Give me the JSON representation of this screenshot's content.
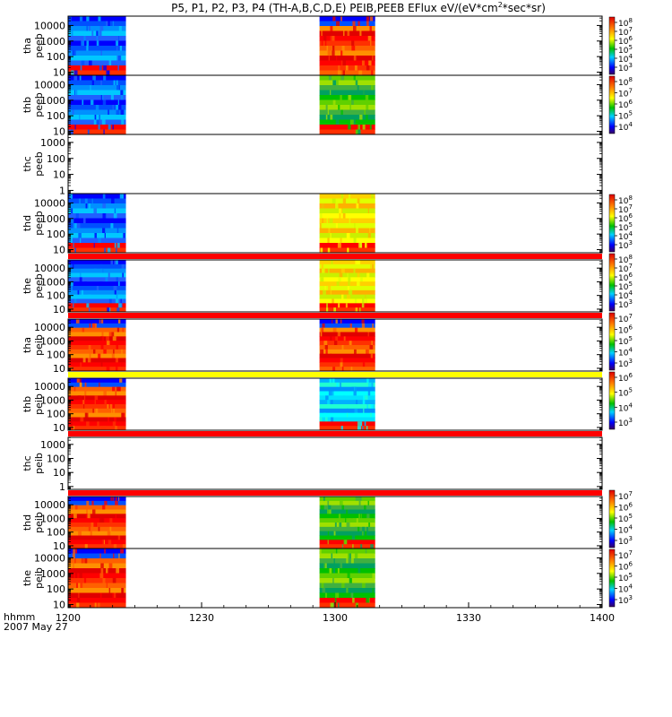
{
  "chart_data": {
    "type": "heatmap",
    "title": "P5, P1, P2, P3, P4 (TH-A,B,C,D,E) PEIB,PEEB EFlux eV/(eV*cm",
    "title_sup": "2",
    "title_end": "*sec*sr)",
    "x_label": "hhmm",
    "date_label": "2007 May 27",
    "x_ticks": [
      "1200",
      "1230",
      "1300",
      "1330",
      "1400"
    ],
    "x_tick_values": [
      0,
      30,
      60,
      90,
      120
    ],
    "xlim": [
      0,
      120
    ],
    "bursts": [
      [
        0,
        13
      ],
      [
        56.5,
        69
      ]
    ],
    "panels": [
      {
        "label1": "tha",
        "label2": "peeb",
        "y_ticks": [
          "10",
          "100",
          "1000",
          "10000"
        ],
        "ylim_log": [
          0.8,
          4.6
        ],
        "cb": [
          "10",
          "10",
          "10",
          "10",
          "10",
          "10"
        ],
        "cb_exp": [
          "3",
          "4",
          "5",
          "6",
          "7",
          "8"
        ],
        "burst_palette": [
          "blue",
          "red"
        ],
        "band": "none"
      },
      {
        "label1": "thb",
        "label2": "peeb",
        "y_ticks": [
          "10",
          "100",
          "1000",
          "10000"
        ],
        "ylim_log": [
          0.8,
          4.6
        ],
        "cb": [
          "10",
          "10",
          "10",
          "10",
          "10"
        ],
        "cb_exp": [
          "4",
          "5",
          "6",
          "7",
          "8"
        ],
        "burst_palette": [
          "blue",
          "green"
        ],
        "band": "none"
      },
      {
        "label1": "thc",
        "label2": "peeb",
        "y_ticks": [
          "1",
          "10",
          "100",
          "1000"
        ],
        "ylim_log": [
          -0.2,
          3.5
        ],
        "cb": [],
        "cb_exp": [],
        "burst_palette": [],
        "band": "none"
      },
      {
        "label1": "thd",
        "label2": "peeb",
        "y_ticks": [
          "10",
          "100",
          "1000",
          "10000"
        ],
        "ylim_log": [
          0.8,
          4.6
        ],
        "cb": [
          "10",
          "10",
          "10",
          "10",
          "10",
          "10"
        ],
        "cb_exp": [
          "3",
          "4",
          "5",
          "6",
          "7",
          "8"
        ],
        "burst_palette": [
          "blue",
          "yellow"
        ],
        "band": "none"
      },
      {
        "label1": "the",
        "label2": "peeb",
        "y_ticks": [
          "10",
          "100",
          "1000",
          "10000"
        ],
        "ylim_log": [
          0.8,
          4.6
        ],
        "cb": [
          "10",
          "10",
          "10",
          "10",
          "10",
          "10"
        ],
        "cb_exp": [
          "3",
          "4",
          "5",
          "6",
          "7",
          "8"
        ],
        "burst_palette": [
          "blue",
          "yellow"
        ],
        "band": "red"
      },
      {
        "label1": "tha",
        "label2": "peib",
        "y_ticks": [
          "10",
          "100",
          "1000",
          "10000"
        ],
        "ylim_log": [
          0.8,
          4.6
        ],
        "cb": [
          "10",
          "10",
          "10",
          "10",
          "10"
        ],
        "cb_exp": [
          "3",
          "4",
          "5",
          "6",
          "7"
        ],
        "burst_palette": [
          "red",
          "red"
        ],
        "band": "red"
      },
      {
        "label1": "thb",
        "label2": "peib",
        "y_ticks": [
          "10",
          "100",
          "1000",
          "10000"
        ],
        "ylim_log": [
          0.8,
          4.6
        ],
        "cb": [
          "10",
          "10",
          "10",
          "10"
        ],
        "cb_exp": [
          "3",
          "4",
          "5",
          "6"
        ],
        "burst_palette": [
          "red",
          "cyan"
        ],
        "band": "yellow"
      },
      {
        "label1": "thc",
        "label2": "peib",
        "y_ticks": [
          "1",
          "10",
          "100",
          "1000"
        ],
        "ylim_log": [
          -0.2,
          3.5
        ],
        "cb": [],
        "cb_exp": [],
        "burst_palette": [],
        "band": "red"
      },
      {
        "label1": "thd",
        "label2": "peib",
        "y_ticks": [
          "10",
          "100",
          "1000",
          "10000"
        ],
        "ylim_log": [
          0.8,
          4.6
        ],
        "cb": [
          "10",
          "10",
          "10",
          "10",
          "10"
        ],
        "cb_exp": [
          "3",
          "4",
          "5",
          "6",
          "7"
        ],
        "burst_palette": [
          "red",
          "green"
        ],
        "band": "red"
      },
      {
        "label1": "the",
        "label2": "peib",
        "y_ticks": [
          "10",
          "100",
          "1000",
          "10000"
        ],
        "ylim_log": [
          0.8,
          4.6
        ],
        "cb": [
          "10",
          "10",
          "10",
          "10",
          "10"
        ],
        "cb_exp": [
          "3",
          "4",
          "5",
          "6",
          "7"
        ],
        "burst_palette": [
          "red",
          "green"
        ],
        "band": "none"
      }
    ]
  }
}
